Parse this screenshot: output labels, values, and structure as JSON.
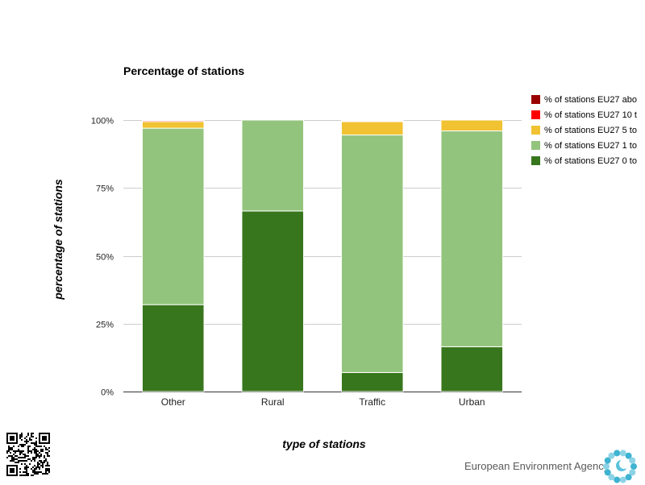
{
  "chart_data": {
    "type": "bar",
    "stacked": true,
    "title": "Percentage of stations",
    "xlabel": "type of stations",
    "ylabel": "percentage of stations",
    "categories": [
      "Other",
      "Rural",
      "Traffic",
      "Urban"
    ],
    "ylim": [
      0,
      100
    ],
    "y_ticks": [
      "0%",
      "25%",
      "50%",
      "75%",
      "100%"
    ],
    "grid": true,
    "legend_position": "right",
    "series": [
      {
        "name": "% of stations EU27 0 to",
        "color": "#38761d",
        "values": [
          32,
          66.5,
          7,
          16.5
        ]
      },
      {
        "name": "% of stations EU27 1 to",
        "color": "#93c47d",
        "values": [
          65,
          33.5,
          87.5,
          79.5
        ]
      },
      {
        "name": "% of stations EU27 5 to",
        "color": "#f1c232",
        "values": [
          2.4,
          0,
          4.9,
          4.0
        ]
      },
      {
        "name": "% of stations EU27 10 t",
        "color": "#ff0000",
        "values": [
          0.4,
          0,
          0.3,
          0
        ]
      },
      {
        "name": "% of stations EU27 abo",
        "color": "#990000",
        "values": [
          0.2,
          0,
          0.3,
          0
        ]
      }
    ]
  },
  "footer": {
    "brand": "European Environment Agency"
  },
  "icons": {
    "logo": "eea-sun-logo-icon",
    "qr": "qr-code-icon"
  }
}
